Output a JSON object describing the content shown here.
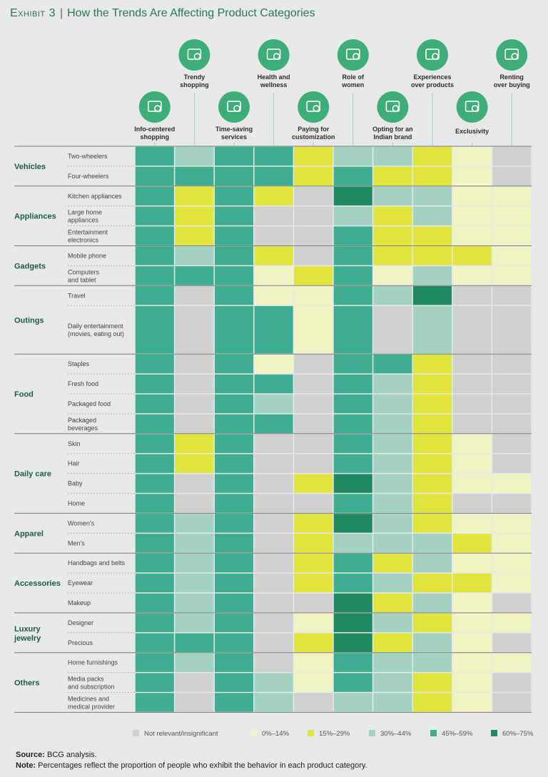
{
  "title": {
    "exhibit": "Exhibit 3",
    "text": "How the Trends Are Affecting Product Categories"
  },
  "colors": {
    "0": "#cfd0d1",
    "1": "#f1f3c4",
    "2": "#e2e43e",
    "3": "#a3d1c2",
    "4": "#3fad90",
    "5": "#1f8a5f",
    "icon": "#3fad79",
    "line": "#9fcfbc"
  },
  "chart_data": {
    "type": "heatmap",
    "title": "How the Trends Are Affecting Product Categories",
    "trends": [
      {
        "name": "Info-centered shopping",
        "lines": [
          "Info-centered",
          "shopping"
        ],
        "icon": "search-document-icon",
        "tier": "low"
      },
      {
        "name": "Trendy shopping",
        "lines": [
          "Trendy",
          "shopping"
        ],
        "icon": "clothing-icon",
        "tier": "high"
      },
      {
        "name": "Time-saving services",
        "lines": [
          "Time-saving",
          "services"
        ],
        "icon": "services-icon",
        "tier": "low"
      },
      {
        "name": "Health and wellness",
        "lines": [
          "Health and",
          "wellness"
        ],
        "icon": "heart-pulse-icon",
        "tier": "high"
      },
      {
        "name": "Paying for customization",
        "lines": [
          "Paying for",
          "customization"
        ],
        "icon": "customize-icon",
        "tier": "low"
      },
      {
        "name": "Role of women",
        "lines": [
          "Role of",
          "women"
        ],
        "icon": "woman-icon",
        "tier": "high"
      },
      {
        "name": "Opting for an Indian brand",
        "lines": [
          "Opting for an",
          "Indian brand"
        ],
        "icon": "india-map-icon",
        "tier": "low"
      },
      {
        "name": "Experiences over products",
        "lines": [
          "Experiences",
          "over products"
        ],
        "icon": "head-gears-icon",
        "tier": "high"
      },
      {
        "name": "Exclusivity",
        "lines": [
          "Exclusivity"
        ],
        "icon": "hand-diamond-icon",
        "tier": "low"
      },
      {
        "name": "Renting over buying",
        "lines": [
          "Renting",
          "over buying"
        ],
        "icon": "money-gear-icon",
        "tier": "high"
      }
    ],
    "groups": [
      {
        "name": [
          "Vehicles"
        ],
        "rows": [
          {
            "label": [
              "Two-wheelers"
            ],
            "values": [
              4,
              3,
              4,
              4,
              2,
              3,
              3,
              2,
              1,
              0
            ]
          },
          {
            "label": [
              "Four-wheelers"
            ],
            "values": [
              4,
              4,
              4,
              4,
              2,
              4,
              2,
              2,
              1,
              0
            ]
          }
        ]
      },
      {
        "name": [
          "Appliances"
        ],
        "rows": [
          {
            "label": [
              "Kitchen appliances"
            ],
            "values": [
              4,
              2,
              4,
              2,
              0,
              5,
              3,
              3,
              1,
              1
            ]
          },
          {
            "label": [
              "Large home",
              "appliances"
            ],
            "values": [
              4,
              2,
              4,
              0,
              0,
              3,
              2,
              3,
              1,
              1
            ]
          },
          {
            "label": [
              "Entertainment",
              "electronics"
            ],
            "values": [
              4,
              2,
              4,
              0,
              0,
              4,
              2,
              2,
              1,
              1
            ]
          }
        ]
      },
      {
        "name": [
          "Gadgets"
        ],
        "rows": [
          {
            "label": [
              "Mobile phone"
            ],
            "values": [
              4,
              3,
              4,
              2,
              0,
              4,
              2,
              2,
              2,
              1
            ]
          },
          {
            "label": [
              "Computers",
              "and tablet"
            ],
            "values": [
              4,
              4,
              4,
              1,
              2,
              4,
              1,
              3,
              1,
              1
            ]
          }
        ]
      },
      {
        "name": [
          "Outings"
        ],
        "rows": [
          {
            "label": [
              "Travel"
            ],
            "values": [
              4,
              0,
              4,
              1,
              1,
              4,
              3,
              5,
              0,
              0
            ]
          },
          {
            "label": [
              "Daily entertainment",
              "(movies, eating out)"
            ],
            "values": [
              4,
              0,
              4,
              4,
              1,
              4,
              0,
              3,
              0,
              0
            ],
            "tall": true
          }
        ]
      },
      {
        "name": [
          "Food"
        ],
        "rows": [
          {
            "label": [
              "Staples"
            ],
            "values": [
              4,
              0,
              4,
              1,
              0,
              4,
              4,
              2,
              0,
              0
            ]
          },
          {
            "label": [
              "Fresh food"
            ],
            "values": [
              4,
              0,
              4,
              4,
              0,
              4,
              3,
              2,
              0,
              0
            ]
          },
          {
            "label": [
              "Packaged food"
            ],
            "values": [
              4,
              0,
              4,
              3,
              0,
              4,
              3,
              2,
              0,
              0
            ]
          },
          {
            "label": [
              "Packaged",
              "beverages"
            ],
            "values": [
              4,
              0,
              4,
              4,
              0,
              4,
              3,
              2,
              0,
              0
            ]
          }
        ]
      },
      {
        "name": [
          "Daily care"
        ],
        "rows": [
          {
            "label": [
              "Skin"
            ],
            "values": [
              4,
              2,
              4,
              0,
              0,
              4,
              3,
              2,
              1,
              0
            ]
          },
          {
            "label": [
              "Hair"
            ],
            "values": [
              4,
              2,
              4,
              0,
              0,
              4,
              3,
              2,
              1,
              0
            ]
          },
          {
            "label": [
              "Baby"
            ],
            "values": [
              4,
              0,
              4,
              0,
              2,
              5,
              3,
              2,
              1,
              1
            ]
          },
          {
            "label": [
              "Home"
            ],
            "values": [
              4,
              0,
              4,
              0,
              0,
              4,
              3,
              2,
              0,
              0
            ]
          }
        ]
      },
      {
        "name": [
          "Apparel"
        ],
        "rows": [
          {
            "label": [
              "Women's"
            ],
            "values": [
              4,
              3,
              4,
              0,
              2,
              5,
              3,
              2,
              1,
              1
            ]
          },
          {
            "label": [
              "Men's"
            ],
            "values": [
              4,
              3,
              4,
              0,
              2,
              3,
              3,
              3,
              2,
              1
            ]
          }
        ]
      },
      {
        "name": [
          "Accessories"
        ],
        "rows": [
          {
            "label": [
              "Handbags and belts"
            ],
            "values": [
              4,
              3,
              4,
              0,
              2,
              4,
              2,
              3,
              1,
              1
            ]
          },
          {
            "label": [
              "Eyewear"
            ],
            "values": [
              4,
              3,
              4,
              0,
              2,
              4,
              3,
              2,
              2,
              1
            ]
          },
          {
            "label": [
              "Makeup"
            ],
            "values": [
              4,
              3,
              4,
              0,
              0,
              5,
              2,
              3,
              1,
              0
            ]
          }
        ]
      },
      {
        "name": [
          "Luxury",
          "jewelry"
        ],
        "rows": [
          {
            "label": [
              "Designer"
            ],
            "values": [
              4,
              3,
              4,
              0,
              1,
              5,
              3,
              2,
              1,
              1
            ]
          },
          {
            "label": [
              "Precious"
            ],
            "values": [
              4,
              4,
              4,
              0,
              2,
              5,
              2,
              3,
              1,
              0
            ]
          }
        ]
      },
      {
        "name": [
          "Others"
        ],
        "rows": [
          {
            "label": [
              "Home furnishings"
            ],
            "values": [
              4,
              3,
              4,
              0,
              1,
              4,
              3,
              3,
              1,
              1
            ]
          },
          {
            "label": [
              "Media packs",
              "and subscription"
            ],
            "values": [
              4,
              0,
              4,
              3,
              1,
              4,
              3,
              2,
              1,
              0
            ]
          },
          {
            "label": [
              "Medicines and",
              "medical provider"
            ],
            "values": [
              4,
              0,
              4,
              3,
              0,
              3,
              3,
              2,
              1,
              0
            ]
          }
        ]
      }
    ],
    "legend": [
      {
        "code": 0,
        "label": "Not relevant/insignificant"
      },
      {
        "code": 1,
        "label": "0%–14%"
      },
      {
        "code": 2,
        "label": "15%–29%"
      },
      {
        "code": 3,
        "label": "30%–44%"
      },
      {
        "code": 4,
        "label": "45%–59%"
      },
      {
        "code": 5,
        "label": "60%–75%"
      }
    ]
  },
  "footer": {
    "source_label": "Source:",
    "source_text": "BCG analysis.",
    "note_label": "Note:",
    "note_text": "Percentages reflect the proportion of people who exhibit the behavior in each product category."
  }
}
